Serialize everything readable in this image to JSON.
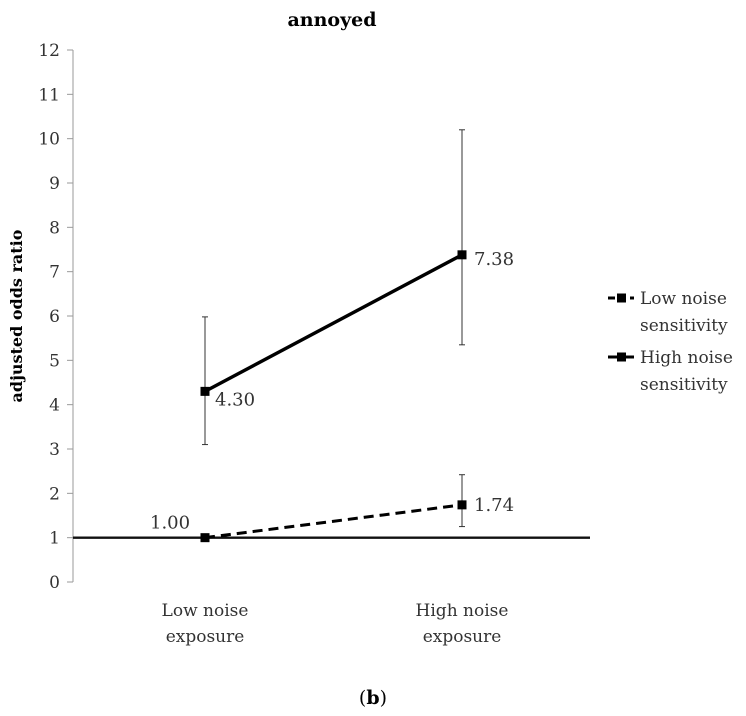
{
  "chart_data": {
    "type": "line",
    "title": "annoyed",
    "ylabel": "adjusted odds ratio",
    "xlabel": "",
    "ylim": [
      0,
      12
    ],
    "yticks": [
      0,
      1,
      2,
      3,
      4,
      5,
      6,
      7,
      8,
      9,
      10,
      11,
      12
    ],
    "categories": [
      [
        "Low noise",
        "exposure"
      ],
      [
        "High noise",
        "exposure"
      ]
    ],
    "reference_line": 1,
    "grid": false,
    "legend_position": "right",
    "series": [
      {
        "name": [
          "Low noise",
          "sensitivity"
        ],
        "style": "dashed",
        "values": [
          1.0,
          1.74
        ],
        "labels": [
          "1.00",
          "1.74"
        ],
        "error_low": [
          1.0,
          1.25
        ],
        "error_high": [
          1.0,
          2.42
        ]
      },
      {
        "name": [
          "High noise",
          "sensitivity"
        ],
        "style": "solid",
        "values": [
          4.3,
          7.38
        ],
        "labels": [
          "4.30",
          "7.38"
        ],
        "error_low": [
          3.1,
          5.35
        ],
        "error_high": [
          5.98,
          10.2
        ]
      }
    ],
    "caption": "(b)"
  }
}
